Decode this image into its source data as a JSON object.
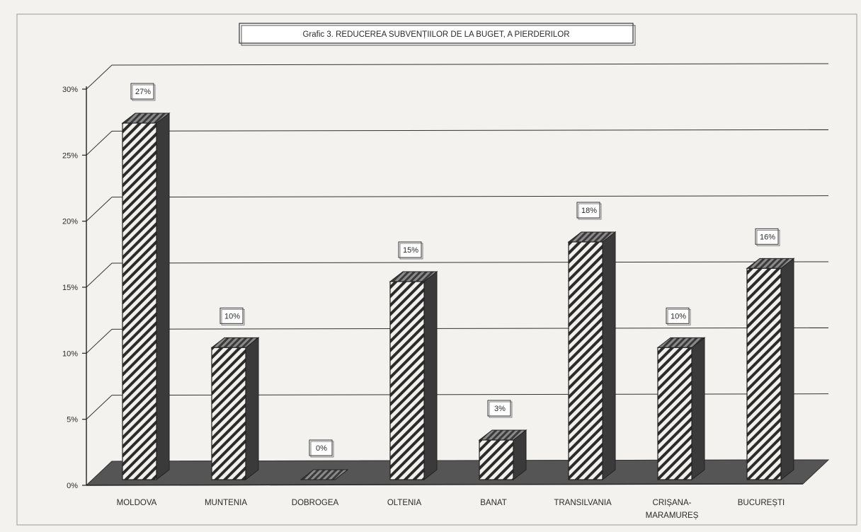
{
  "chart_data": {
    "type": "bar",
    "title": "Grafic 3. REDUCEREA SUBVENȚIILOR DE LA BUGET,  A PIERDERILOR",
    "categories": [
      [
        "MOLDOVA"
      ],
      [
        "MUNTENIA"
      ],
      [
        "DOBROGEA"
      ],
      [
        "OLTENIA"
      ],
      [
        "BANAT"
      ],
      [
        "TRANSILVANIA"
      ],
      [
        "CRIȘANA-",
        "MARAMUREȘ"
      ],
      [
        "BUCUREȘTI"
      ]
    ],
    "values": [
      27,
      10,
      0,
      15,
      3,
      18,
      10,
      16
    ],
    "data_labels": [
      "27%",
      "10%",
      "0%",
      "15%",
      "3%",
      "18%",
      "10%",
      "16%"
    ],
    "y_ticks": [
      0,
      5,
      10,
      15,
      20,
      25,
      30
    ],
    "y_tick_labels": [
      "0%",
      "5%",
      "10%",
      "15%",
      "20%",
      "25%",
      "30%"
    ],
    "ylim": [
      0,
      30
    ],
    "grid": true,
    "style": "3d-hatched-bars",
    "colors": {
      "bar_face": "#f2f0ec",
      "bar_hatch": "#2b2b2b",
      "bar_side": "#3a3a3a",
      "bar_top": "#5a5a5a",
      "floor": "#555555",
      "grid": "#333333",
      "background": "#f4f2ee"
    }
  }
}
